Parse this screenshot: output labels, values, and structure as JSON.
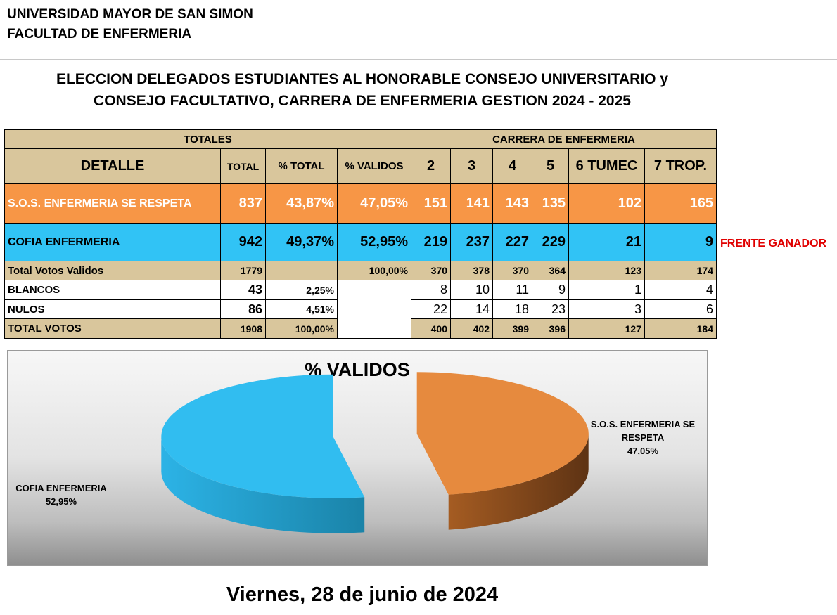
{
  "header": {
    "university": "UNIVERSIDAD MAYOR DE SAN SIMON",
    "faculty": "FACULTAD DE ENFERMERIA"
  },
  "title": {
    "line1": "ELECCION DELEGADOS ESTUDIANTES AL HONORABLE CONSEJO UNIVERSITARIO y",
    "line2": "CONSEJO FACULTATIVO, CARRERA  DE ENFERMERIA GESTION 2024 - 2025"
  },
  "table": {
    "group_totales": "TOTALES",
    "group_carrera": "CARRERA DE ENFERMERIA",
    "columns": {
      "detalle": "DETALLE",
      "total": "TOTAL",
      "pct_total": "% TOTAL",
      "pct_validos": "% VALIDOS",
      "c2": "2",
      "c3": "3",
      "c4": "4",
      "c5": "5",
      "c6": "6 TUMEC",
      "c7": "7 TROP."
    },
    "sos": {
      "label": "S.O.S. ENFERMERIA SE RESPETA",
      "total": "837",
      "pct_total": "43,87%",
      "pct_validos": "47,05%",
      "c2": "151",
      "c3": "141",
      "c4": "143",
      "c5": "135",
      "c6": "102",
      "c7": "165"
    },
    "cofia": {
      "label": "COFIA ENFERMERIA",
      "total": "942",
      "pct_total": "49,37%",
      "pct_validos": "52,95%",
      "c2": "219",
      "c3": "237",
      "c4": "227",
      "c5": "229",
      "c6": "21",
      "c7": "9"
    },
    "validos": {
      "label": "Total Votos Validos",
      "total": "1779",
      "pct_validos": "100,00%",
      "c2": "370",
      "c3": "378",
      "c4": "370",
      "c5": "364",
      "c6": "123",
      "c7": "174"
    },
    "blancos": {
      "label": "BLANCOS",
      "total": "43",
      "pct_total": "2,25%",
      "c2": "8",
      "c3": "10",
      "c4": "11",
      "c5": "9",
      "c6": "1",
      "c7": "4"
    },
    "nulos": {
      "label": "NULOS",
      "total": "86",
      "pct_total": "4,51%",
      "c2": "22",
      "c3": "14",
      "c4": "18",
      "c5": "23",
      "c6": "3",
      "c7": "6"
    },
    "total_votos": {
      "label": "TOTAL VOTOS",
      "total": "1908",
      "pct_total": "100,00%",
      "c2": "400",
      "c3": "402",
      "c4": "399",
      "c5": "396",
      "c6": "127",
      "c7": "184"
    }
  },
  "winner_note": "FRENTE GANADOR",
  "chart_data": {
    "type": "pie",
    "title": "% VALIDOS",
    "slices": [
      {
        "label": "S.O.S. ENFERMERIA SE RESPETA",
        "value": 47.05,
        "display": "47,05%",
        "color": "#e68a3e"
      },
      {
        "label": "COFIA ENFERMERIA",
        "value": 52.95,
        "display": "52,95%",
        "color": "#31bdf0"
      }
    ]
  },
  "footer_date": "Viernes, 28 de junio de 2024"
}
